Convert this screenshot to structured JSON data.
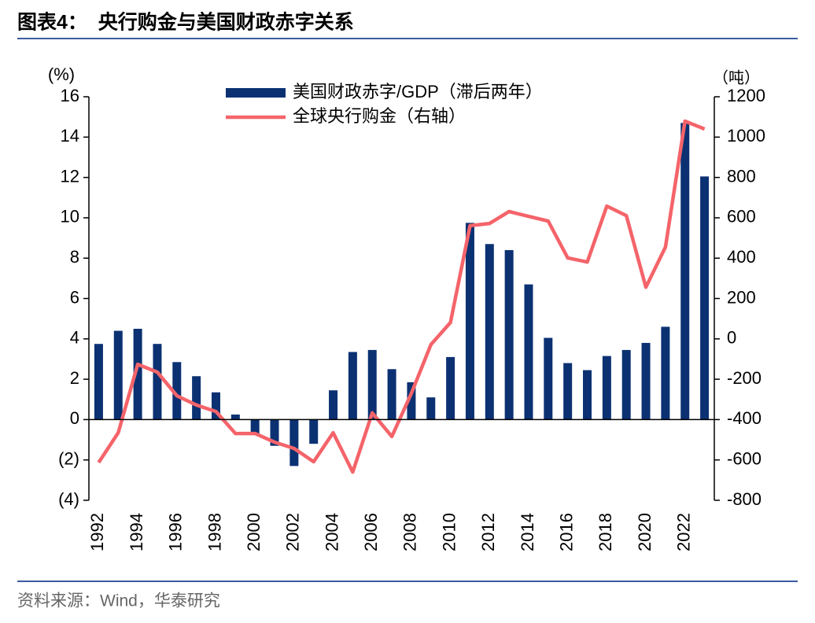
{
  "chart_data": {
    "type": "bar-line",
    "title": "图表4：  央行购金与美国财政赤字关系",
    "source": "资料来源：Wind，华泰研究",
    "y_label": "(%)",
    "y2_label": "（吨）",
    "categories": [
      "1992",
      null,
      "1994",
      null,
      "1996",
      null,
      "1998",
      null,
      "2000",
      null,
      "2002",
      null,
      "2004",
      null,
      "2006",
      null,
      "2008",
      null,
      "2010",
      null,
      "2012",
      null,
      "2014",
      null,
      "2016",
      null,
      "2018",
      null,
      "2020",
      null,
      "2022",
      null
    ],
    "series": [
      {
        "name": "美国财政赤字/GDP（滞后两年）",
        "type": "bar",
        "color": "#0b3172",
        "values": [
          3.75,
          4.4,
          4.5,
          3.75,
          2.85,
          2.15,
          1.35,
          0.25,
          -0.75,
          -1.3,
          -2.3,
          -1.2,
          1.45,
          3.35,
          3.45,
          2.5,
          1.85,
          1.1,
          3.1,
          9.75,
          8.7,
          8.4,
          6.7,
          4.05,
          2.8,
          2.45,
          3.15,
          3.45,
          3.8,
          4.6,
          14.7,
          12.05
        ]
      },
      {
        "name": "全球央行购金（右轴）",
        "type": "line",
        "axis": "y2",
        "color": "#f4646a",
        "values": [
          -613,
          -465,
          -126,
          -165,
          -282,
          -328,
          -360,
          -469,
          -469,
          -512,
          -543,
          -609,
          -465,
          -660,
          -367,
          -484,
          -270,
          -28,
          81,
          561,
          572,
          631,
          607,
          584,
          401,
          381,
          658,
          611,
          256,
          455,
          1079,
          1040
        ]
      }
    ],
    "ylim": [
      -4,
      16
    ],
    "yticks": [
      {
        "value": -4,
        "label": "(4)"
      },
      {
        "value": -2,
        "label": "(2)"
      },
      0,
      2,
      4,
      6,
      8,
      10,
      12,
      14,
      16
    ],
    "y2lim": [
      -800,
      1200
    ],
    "y2ticks": [
      -800,
      -600,
      -400,
      -200,
      0,
      200,
      400,
      600,
      800,
      1000,
      1200
    ]
  }
}
